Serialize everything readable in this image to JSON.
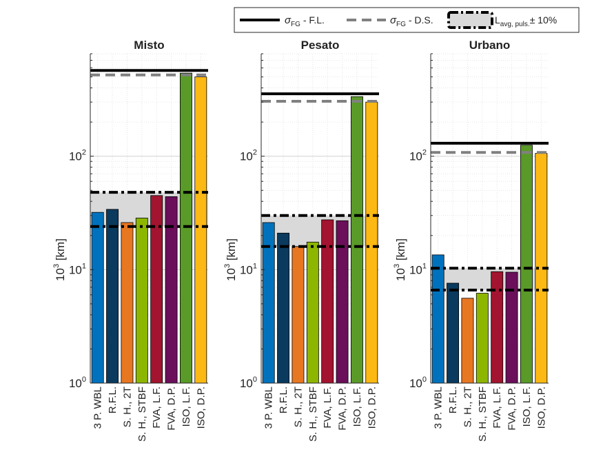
{
  "legend": {
    "items": [
      {
        "symbol": "σ",
        "sub": "FG",
        "suffix": " - F.L.",
        "color": "#000000",
        "style": "solid"
      },
      {
        "symbol": "σ",
        "sub": "FG",
        "suffix": " - D.S.",
        "color": "#808080",
        "style": "dashed"
      },
      {
        "symbol": "L",
        "sub": "avg, puls.",
        "suffix": "± 10%",
        "color": "#000000",
        "style": "dash-dot-box"
      }
    ],
    "placement": "top"
  },
  "chart_data": [
    {
      "type": "bar",
      "title": "Misto",
      "ylabel_base": "10",
      "ylabel_exp": "3",
      "ylabel_unit": " [km]",
      "yscale": "log",
      "ylim": [
        1,
        800
      ],
      "yticks": [
        1,
        10,
        100
      ],
      "categories": [
        "3 P. WBL",
        "R.F.L.",
        "S. H., 2T",
        "S. H., STBF",
        "FVA, L.F.",
        "FVA, D.P.",
        "ISO, L.F.",
        "ISO, D.P."
      ],
      "values": [
        32,
        34,
        26,
        28.5,
        45,
        44,
        540,
        500
      ],
      "colors": [
        "#0072BD",
        "#0A3A5E",
        "#E87722",
        "#8DB600",
        "#A2142F",
        "#6B0F5A",
        "#5A9A28",
        "#FDB913"
      ],
      "reference_lines": {
        "sigma_fl": 570,
        "sigma_ds": 520,
        "band_low": 24,
        "band_high": 48
      },
      "grid": true
    },
    {
      "type": "bar",
      "title": "Pesato",
      "ylabel_base": "10",
      "ylabel_exp": "3",
      "ylabel_unit": " [km]",
      "yscale": "log",
      "ylim": [
        1,
        800
      ],
      "yticks": [
        1,
        10,
        100
      ],
      "categories": [
        "3 P. WBL",
        "R.F.L.",
        "S. H., 2T",
        "S. H., STBF",
        "FVA, L.F.",
        "FVA, D.P.",
        "ISO, L.F.",
        "ISO, D.P."
      ],
      "values": [
        26,
        21,
        16,
        17.5,
        27.5,
        27,
        335,
        300
      ],
      "colors": [
        "#0072BD",
        "#0A3A5E",
        "#E87722",
        "#8DB600",
        "#A2142F",
        "#6B0F5A",
        "#5A9A28",
        "#FDB913"
      ],
      "reference_lines": {
        "sigma_fl": 355,
        "sigma_ds": 305,
        "band_low": 16,
        "band_high": 30
      },
      "grid": true
    },
    {
      "type": "bar",
      "title": "Urbano",
      "ylabel_base": "10",
      "ylabel_exp": "3",
      "ylabel_unit": " [km]",
      "yscale": "log",
      "ylim": [
        1,
        800
      ],
      "yticks": [
        1,
        10,
        100
      ],
      "categories": [
        "3 P. WBL",
        "R.F.L.",
        "S. H., 2T",
        "S. H., STBF",
        "FVA, L.F.",
        "FVA, D.P.",
        "ISO, L.F.",
        "ISO, D.P."
      ],
      "values": [
        13.5,
        7.6,
        5.6,
        6.2,
        9.6,
        9.5,
        125,
        106
      ],
      "colors": [
        "#0072BD",
        "#0A3A5E",
        "#E87722",
        "#8DB600",
        "#A2142F",
        "#6B0F5A",
        "#5A9A28",
        "#FDB913"
      ],
      "reference_lines": {
        "sigma_fl": 130,
        "sigma_ds": 108,
        "band_low": 6.6,
        "band_high": 10.3
      },
      "grid": true
    }
  ]
}
